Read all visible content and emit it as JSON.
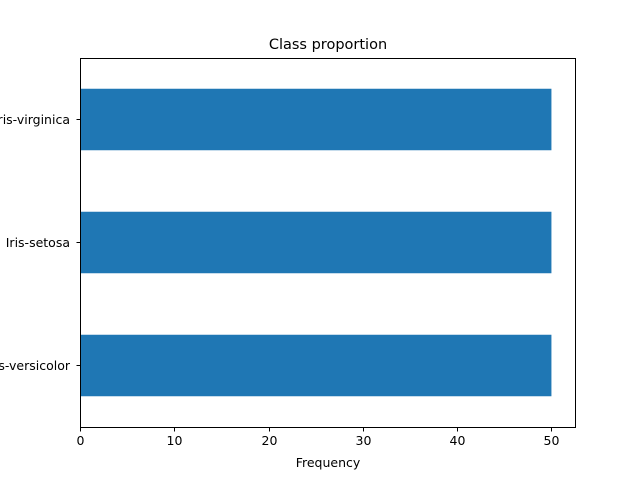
{
  "chart_data": {
    "type": "bar",
    "orientation": "horizontal",
    "title": "Class proportion",
    "xlabel": "Frequency",
    "ylabel": "",
    "categories": [
      "Iris-versicolor",
      "Iris-setosa",
      "Iris-virginica"
    ],
    "values": [
      50,
      50,
      50
    ],
    "xlim": [
      0,
      52.5
    ],
    "xticks": [
      0,
      10,
      20,
      30,
      40,
      50
    ],
    "bar_color": "#1f77b4",
    "grid": false,
    "legend": "none"
  }
}
